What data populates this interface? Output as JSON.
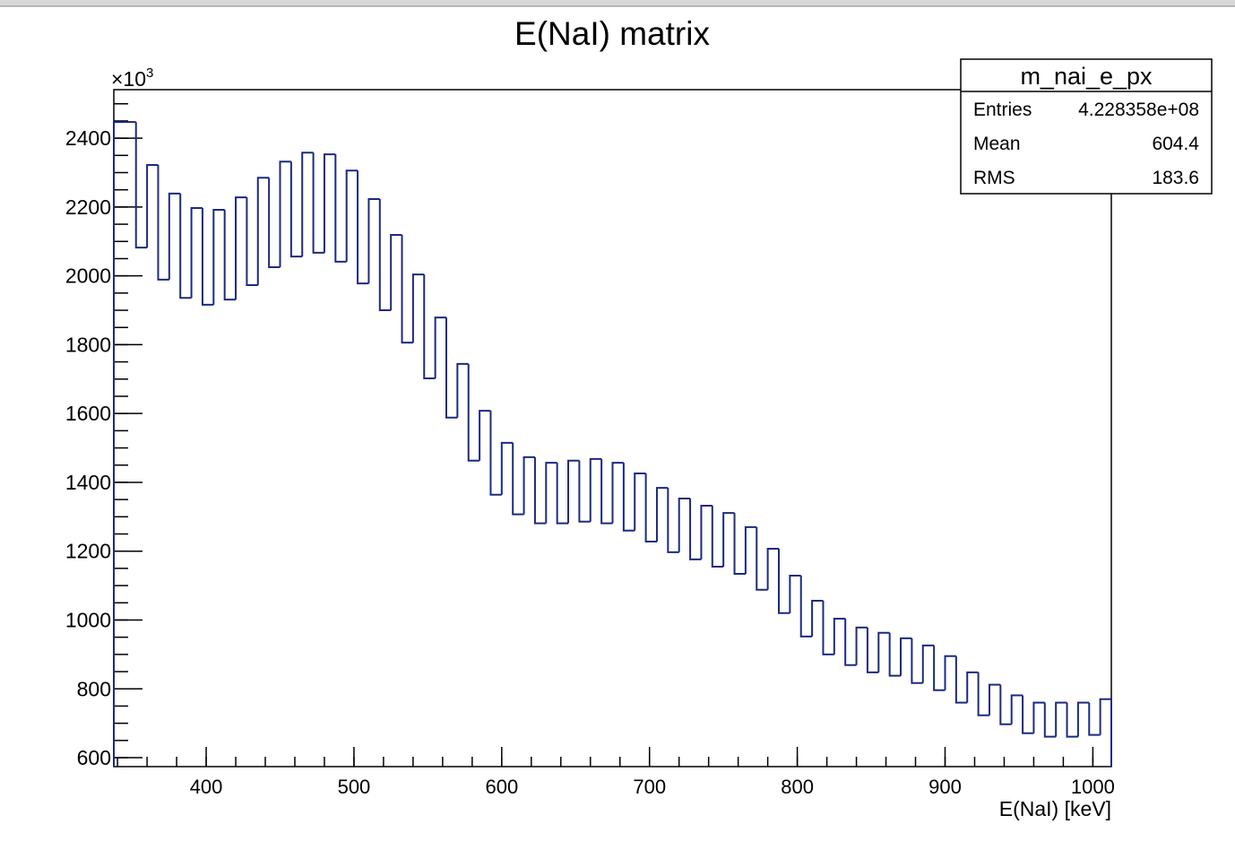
{
  "chart_data": {
    "type": "histogram",
    "title": "E(NaI) matrix",
    "x_label": "E(NaI) [keV]",
    "axis_multiplier": {
      "base": "×10",
      "exponent": "3"
    },
    "color": "#1c2a80",
    "bins": [
      337.5,
      345,
      352.5,
      360,
      367.5,
      375,
      382.5,
      390,
      397.5,
      405,
      412.5,
      420,
      427.5,
      435,
      442.5,
      450,
      457.5,
      465,
      472.5,
      480,
      487.5,
      495,
      502.5,
      510,
      517.5,
      525,
      532.5,
      540,
      547.5,
      555,
      562.5,
      570,
      577.5,
      585,
      592.5,
      600,
      607.5,
      615,
      622.5,
      630,
      637.5,
      645,
      652.5,
      660,
      667.5,
      675,
      682.5,
      690,
      697.5,
      705,
      712.5,
      720,
      727.5,
      735,
      742.5,
      750,
      757.5,
      765,
      772.5,
      780,
      787.5,
      795,
      802.5,
      810,
      817.5,
      825,
      832.5,
      840,
      847.5,
      855,
      862.5,
      870,
      877.5,
      885,
      892.5,
      900,
      907.5,
      915,
      922.5,
      930,
      937.5,
      945,
      952.5,
      960,
      967.5,
      975,
      982.5,
      990,
      997.5,
      1005,
      1012.5
    ],
    "values": [
      2447,
      2447,
      2082,
      2322,
      1989,
      2239,
      1936,
      2197,
      1916,
      2192,
      1931,
      2228,
      1973,
      2285,
      2025,
      2332,
      2056,
      2358,
      2067,
      2353,
      2041,
      2306,
      1978,
      2223,
      1900,
      2119,
      1806,
      2004,
      1702,
      1879,
      1588,
      1744,
      1463,
      1608,
      1364,
      1515,
      1307,
      1473,
      1281,
      1457,
      1281,
      1463,
      1286,
      1468,
      1281,
      1457,
      1260,
      1426,
      1228,
      1384,
      1197,
      1353,
      1176,
      1332,
      1155,
      1311,
      1134,
      1270,
      1088,
      1207,
      1020,
      1129,
      952,
      1056,
      900,
      1004,
      869,
      978,
      848,
      963,
      838,
      947,
      817,
      926,
      796,
      895,
      760,
      848,
      723,
      812,
      697,
      781,
      671,
      760,
      661,
      760,
      661,
      760,
      666,
      770
    ],
    "xlim": [
      337.5,
      1012.5
    ],
    "ylim": [
      574,
      2541
    ],
    "xticks": [
      400,
      500,
      600,
      700,
      800,
      900,
      1000
    ],
    "yticks": [
      600,
      800,
      1000,
      1200,
      1400,
      1600,
      1800,
      2000,
      2200,
      2400
    ],
    "stats": {
      "title": "m_nai_e_px",
      "rows": [
        [
          "Entries",
          "4.228358e+08"
        ],
        [
          "Mean",
          "604.4"
        ],
        [
          "RMS",
          "183.6"
        ]
      ]
    }
  }
}
